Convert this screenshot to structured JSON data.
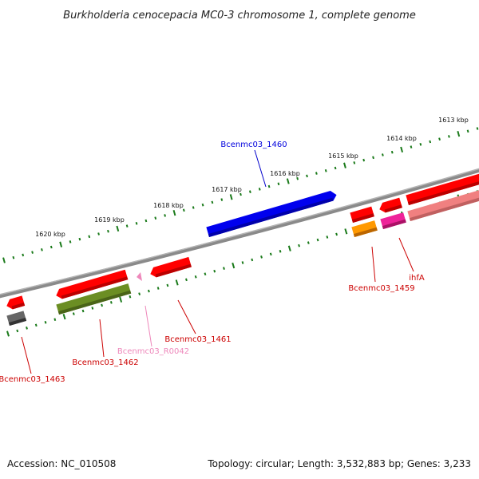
{
  "title": "Burkholderia cenocepacia MC0-3 chromosome 1, complete genome",
  "footer": {
    "accession": "Accession: NC_010508",
    "summary": "Topology: circular; Length: 3,532,883 bp; Genes: 3,233"
  },
  "scale": {
    "tick_color": "#1a7a1a",
    "labels": [
      "1613 kbp",
      "1614 kbp",
      "1615 kbp",
      "1616 kbp",
      "1617 kbp",
      "1618 kbp",
      "1619 kbp",
      "1620 kbp"
    ]
  },
  "genes": [
    {
      "name": "Bcenmc03_1460",
      "color": "#0000dd"
    },
    {
      "name": "Bcenmc03_1459",
      "color": "#cc0000"
    },
    {
      "name": "ihfA",
      "color": "#cc0000"
    },
    {
      "name": "Bcenmc03_1461",
      "color": "#cc0000"
    },
    {
      "name": "Bcenmc03_R0042",
      "color": "#ee88bb"
    },
    {
      "name": "Bcenmc03_1462",
      "color": "#cc0000"
    },
    {
      "name": "Bcenmc03_1463",
      "color": "#cc0000"
    }
  ]
}
